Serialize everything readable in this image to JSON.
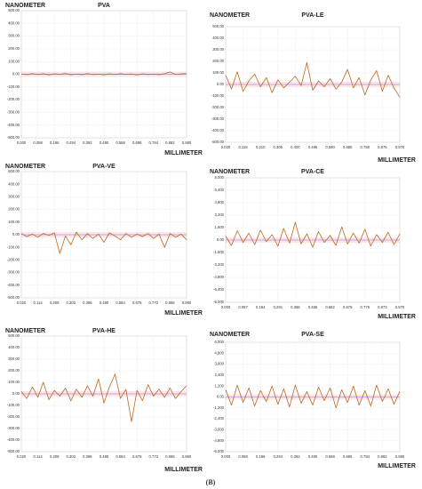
{
  "chart_data": [
    {
      "type": "line",
      "title": "PVA",
      "y_label": "NANOMETER",
      "x_label": "MILLIMETER",
      "color": "#c0661f",
      "grid": true,
      "x": [
        0.0,
        0.033,
        0.065,
        0.098,
        0.131,
        0.163,
        0.196,
        0.229,
        0.261,
        0.294,
        0.327,
        0.359,
        0.392,
        0.425,
        0.457,
        0.49,
        0.523,
        0.555,
        0.588,
        0.621,
        0.653,
        0.686,
        0.719,
        0.751,
        0.784,
        0.817,
        0.849,
        0.882,
        0.915,
        0.947,
        0.98
      ],
      "values": [
        2,
        -3,
        5,
        -2,
        4,
        -5,
        3,
        -1,
        6,
        -4,
        2,
        -3,
        5,
        -2,
        1,
        -4,
        3,
        -2,
        4,
        -1,
        2,
        -5,
        3,
        -2,
        1,
        -3,
        4,
        18,
        -2,
        3,
        5
      ],
      "xlim": [
        0,
        0.98
      ],
      "ylim": [
        -500,
        500
      ],
      "xticks": [
        {
          "value": 0,
          "label": "0.000"
        },
        {
          "value": 0.098,
          "label": "0.098"
        },
        {
          "value": 0.196,
          "label": "0.196"
        },
        {
          "value": 0.294,
          "label": "0.294"
        },
        {
          "value": 0.392,
          "label": "0.392"
        },
        {
          "value": 0.49,
          "label": "0.490"
        },
        {
          "value": 0.588,
          "label": "0.588"
        },
        {
          "value": 0.686,
          "label": "0.686"
        },
        {
          "value": 0.784,
          "label": "0.784"
        },
        {
          "value": 0.882,
          "label": "0.882"
        },
        {
          "value": 0.98,
          "label": "0.980"
        }
      ],
      "yticks": [
        {
          "value": 500,
          "label": "500.00"
        },
        {
          "value": 400,
          "label": "400.00"
        },
        {
          "value": 300,
          "label": "300.00"
        },
        {
          "value": 200,
          "label": "200.00"
        },
        {
          "value": 100,
          "label": "100.00"
        },
        {
          "value": 0,
          "label": "0.00"
        },
        {
          "value": -100,
          "label": "-100.00"
        },
        {
          "value": -200,
          "label": "-200.00"
        },
        {
          "value": -300,
          "label": "-300.00"
        },
        {
          "value": -400,
          "label": "-400.00"
        },
        {
          "value": -500,
          "label": "-500.00"
        }
      ]
    },
    {
      "type": "line",
      "title": "PVA-LE",
      "y_label": "NANOMETER",
      "x_label": "MILLIMETER",
      "color": "#c0661f",
      "grid": true,
      "x": [
        0.02,
        0.052,
        0.083,
        0.115,
        0.147,
        0.178,
        0.21,
        0.242,
        0.273,
        0.305,
        0.337,
        0.368,
        0.4,
        0.432,
        0.463,
        0.495,
        0.527,
        0.558,
        0.59,
        0.622,
        0.653,
        0.685,
        0.717,
        0.748,
        0.78,
        0.812,
        0.843,
        0.875,
        0.907,
        0.938,
        0.97
      ],
      "values": [
        80,
        -40,
        110,
        -60,
        30,
        90,
        -20,
        60,
        -70,
        40,
        -30,
        20,
        70,
        -10,
        190,
        -50,
        30,
        -20,
        50,
        -40,
        20,
        130,
        -30,
        60,
        -90,
        40,
        120,
        -60,
        80,
        -30,
        -110
      ],
      "xlim": [
        0.02,
        0.97
      ],
      "ylim": [
        -500,
        500
      ],
      "xticks": [
        {
          "value": 0.02,
          "label": "0.020"
        },
        {
          "value": 0.115,
          "label": "0.115"
        },
        {
          "value": 0.21,
          "label": "0.210"
        },
        {
          "value": 0.305,
          "label": "0.305"
        },
        {
          "value": 0.4,
          "label": "0.400"
        },
        {
          "value": 0.495,
          "label": "0.495"
        },
        {
          "value": 0.59,
          "label": "0.590"
        },
        {
          "value": 0.685,
          "label": "0.685"
        },
        {
          "value": 0.78,
          "label": "0.780"
        },
        {
          "value": 0.875,
          "label": "0.875"
        },
        {
          "value": 0.97,
          "label": "0.970"
        }
      ],
      "yticks": [
        {
          "value": 500,
          "label": "500.00"
        },
        {
          "value": 400,
          "label": "400.00"
        },
        {
          "value": 300,
          "label": "300.00"
        },
        {
          "value": 200,
          "label": "200.00"
        },
        {
          "value": 100,
          "label": "100.00"
        },
        {
          "value": 0,
          "label": "0.00"
        },
        {
          "value": -100,
          "label": "-100.00"
        },
        {
          "value": -200,
          "label": "-200.00"
        },
        {
          "value": -300,
          "label": "-300.00"
        },
        {
          "value": -400,
          "label": "-400.00"
        },
        {
          "value": -500,
          "label": "-500.00"
        }
      ]
    },
    {
      "type": "line",
      "title": "PVA-VE",
      "y_label": "NANOMETER",
      "x_label": "MILLIMETER",
      "color": "#c0661f",
      "grid": true,
      "x": [
        0.02,
        0.051,
        0.083,
        0.114,
        0.145,
        0.177,
        0.208,
        0.239,
        0.271,
        0.302,
        0.333,
        0.365,
        0.396,
        0.427,
        0.459,
        0.49,
        0.521,
        0.553,
        0.584,
        0.615,
        0.647,
        0.678,
        0.709,
        0.741,
        0.772,
        0.803,
        0.835,
        0.866,
        0.897,
        0.929,
        0.96
      ],
      "values": [
        10,
        -15,
        5,
        -20,
        10,
        -5,
        15,
        -150,
        -10,
        -80,
        20,
        -40,
        10,
        -30,
        5,
        -60,
        15,
        -10,
        -40,
        10,
        -20,
        5,
        -15,
        10,
        -30,
        5,
        -100,
        10,
        -20,
        5,
        -40
      ],
      "xlim": [
        0.02,
        0.96
      ],
      "ylim": [
        -500,
        500
      ],
      "xticks": [
        {
          "value": 0.02,
          "label": "0.020"
        },
        {
          "value": 0.114,
          "label": "0.114"
        },
        {
          "value": 0.208,
          "label": "0.208"
        },
        {
          "value": 0.302,
          "label": "0.302"
        },
        {
          "value": 0.396,
          "label": "0.396"
        },
        {
          "value": 0.49,
          "label": "0.490"
        },
        {
          "value": 0.584,
          "label": "0.584"
        },
        {
          "value": 0.678,
          "label": "0.678"
        },
        {
          "value": 0.772,
          "label": "0.772"
        },
        {
          "value": 0.866,
          "label": "0.866"
        },
        {
          "value": 0.96,
          "label": "0.960"
        }
      ],
      "yticks": [
        {
          "value": 500,
          "label": "500.00"
        },
        {
          "value": 400,
          "label": "400.00"
        },
        {
          "value": 300,
          "label": "300.00"
        },
        {
          "value": 200,
          "label": "200.00"
        },
        {
          "value": 100,
          "label": "100.00"
        },
        {
          "value": 0,
          "label": "0.00"
        },
        {
          "value": -100,
          "label": "-100.00"
        },
        {
          "value": -200,
          "label": "-200.00"
        },
        {
          "value": -300,
          "label": "-300.00"
        },
        {
          "value": -400,
          "label": "-400.00"
        },
        {
          "value": -500,
          "label": "-500.00"
        }
      ]
    },
    {
      "type": "line",
      "title": "PVA-CE",
      "y_label": "NANOMETER",
      "x_label": "MILLIMETER",
      "color": "#c0661f",
      "grid": true,
      "x": [
        0.0,
        0.032,
        0.065,
        0.097,
        0.129,
        0.162,
        0.194,
        0.226,
        0.259,
        0.291,
        0.323,
        0.356,
        0.388,
        0.42,
        0.453,
        0.485,
        0.517,
        0.55,
        0.582,
        0.614,
        0.647,
        0.679,
        0.711,
        0.744,
        0.776,
        0.808,
        0.841,
        0.873,
        0.905,
        0.938,
        0.97
      ],
      "values": [
        500,
        -700,
        1200,
        -300,
        900,
        -600,
        1300,
        -200,
        700,
        -800,
        1500,
        -400,
        2300,
        -500,
        800,
        -900,
        1100,
        -300,
        600,
        -700,
        1700,
        -500,
        900,
        -400,
        1400,
        -800,
        700,
        -300,
        1000,
        -600,
        800
      ],
      "xlim": [
        0,
        0.97
      ],
      "ylim": [
        -8000,
        8000
      ],
      "xticks": [
        {
          "value": 0,
          "label": "0.000"
        },
        {
          "value": 0.097,
          "label": "0.097"
        },
        {
          "value": 0.194,
          "label": "0.194"
        },
        {
          "value": 0.291,
          "label": "0.291"
        },
        {
          "value": 0.388,
          "label": "0.388"
        },
        {
          "value": 0.485,
          "label": "0.485"
        },
        {
          "value": 0.582,
          "label": "0.582"
        },
        {
          "value": 0.679,
          "label": "0.679"
        },
        {
          "value": 0.776,
          "label": "0.776"
        },
        {
          "value": 0.873,
          "label": "0.873"
        },
        {
          "value": 0.97,
          "label": "0.970"
        }
      ],
      "yticks": [
        {
          "value": 8000,
          "label": "8,000"
        },
        {
          "value": 6400,
          "label": "6,400"
        },
        {
          "value": 4800,
          "label": "4,800"
        },
        {
          "value": 3200,
          "label": "3,200"
        },
        {
          "value": 1600,
          "label": "1,600"
        },
        {
          "value": 0,
          "label": "0.00"
        },
        {
          "value": -1600,
          "label": "-1,600"
        },
        {
          "value": -3200,
          "label": "-3,200"
        },
        {
          "value": -4800,
          "label": "-4,800"
        },
        {
          "value": -6400,
          "label": "-6,400"
        },
        {
          "value": -8000,
          "label": "-8,000"
        }
      ]
    },
    {
      "type": "line",
      "title": "PVA-HE",
      "y_label": "NANOMETER",
      "x_label": "MILLIMETER",
      "color": "#c0661f",
      "grid": true,
      "x": [
        0.02,
        0.051,
        0.083,
        0.114,
        0.145,
        0.177,
        0.208,
        0.239,
        0.271,
        0.302,
        0.333,
        0.365,
        0.396,
        0.427,
        0.459,
        0.49,
        0.521,
        0.553,
        0.584,
        0.615,
        0.647,
        0.678,
        0.709,
        0.741,
        0.772,
        0.803,
        0.835,
        0.866,
        0.897,
        0.929,
        0.96
      ],
      "values": [
        20,
        -40,
        60,
        -30,
        100,
        -50,
        30,
        -20,
        50,
        -60,
        40,
        -30,
        70,
        -20,
        130,
        -80,
        60,
        170,
        -40,
        40,
        -240,
        30,
        -60,
        80,
        -20,
        40,
        -30,
        50,
        -40,
        20,
        70
      ],
      "xlim": [
        0.02,
        0.96
      ],
      "ylim": [
        -500,
        500
      ],
      "xticks": [
        {
          "value": 0.02,
          "label": "0.020"
        },
        {
          "value": 0.114,
          "label": "0.114"
        },
        {
          "value": 0.208,
          "label": "0.208"
        },
        {
          "value": 0.302,
          "label": "0.302"
        },
        {
          "value": 0.396,
          "label": "0.396"
        },
        {
          "value": 0.49,
          "label": "0.490"
        },
        {
          "value": 0.584,
          "label": "0.584"
        },
        {
          "value": 0.678,
          "label": "0.678"
        },
        {
          "value": 0.772,
          "label": "0.772"
        },
        {
          "value": 0.866,
          "label": "0.866"
        },
        {
          "value": 0.96,
          "label": "0.960"
        }
      ],
      "yticks": [
        {
          "value": 500,
          "label": "500.00"
        },
        {
          "value": 400,
          "label": "400.00"
        },
        {
          "value": 300,
          "label": "300.00"
        },
        {
          "value": 200,
          "label": "200.00"
        },
        {
          "value": 100,
          "label": "100.00"
        },
        {
          "value": 0,
          "label": "0.00"
        },
        {
          "value": -100,
          "label": "-100.00"
        },
        {
          "value": -200,
          "label": "-200.00"
        },
        {
          "value": -300,
          "label": "-300.00"
        },
        {
          "value": -400,
          "label": "-400.00"
        },
        {
          "value": -500,
          "label": "-500.00"
        }
      ]
    },
    {
      "type": "line",
      "title": "PVA-SE",
      "y_label": "NANOMETER",
      "x_label": "MILLIMETER",
      "color": "#c0661f",
      "grid": true,
      "x": [
        0.0,
        0.033,
        0.065,
        0.098,
        0.131,
        0.163,
        0.196,
        0.229,
        0.261,
        0.294,
        0.327,
        0.359,
        0.392,
        0.425,
        0.457,
        0.49,
        0.523,
        0.555,
        0.588,
        0.621,
        0.653,
        0.686,
        0.719,
        0.751,
        0.784,
        0.817,
        0.849,
        0.882,
        0.915,
        0.947,
        0.98
      ],
      "values": [
        800,
        -900,
        1300,
        -600,
        1000,
        -1000,
        700,
        -500,
        1200,
        -800,
        900,
        -1100,
        1300,
        -700,
        600,
        -900,
        1100,
        -400,
        1000,
        -1200,
        800,
        -600,
        1200,
        -900,
        700,
        -1000,
        1300,
        -500,
        900,
        -800,
        600
      ],
      "xlim": [
        0,
        0.98
      ],
      "ylim": [
        -6000,
        6000
      ],
      "xticks": [
        {
          "value": 0,
          "label": "0.000"
        },
        {
          "value": 0.098,
          "label": "0.098"
        },
        {
          "value": 0.196,
          "label": "0.196"
        },
        {
          "value": 0.294,
          "label": "0.294"
        },
        {
          "value": 0.392,
          "label": "0.392"
        },
        {
          "value": 0.49,
          "label": "0.490"
        },
        {
          "value": 0.588,
          "label": "0.588"
        },
        {
          "value": 0.686,
          "label": "0.686"
        },
        {
          "value": 0.784,
          "label": "0.784"
        },
        {
          "value": 0.882,
          "label": "0.882"
        },
        {
          "value": 0.98,
          "label": "0.980"
        }
      ],
      "yticks": [
        {
          "value": 6000,
          "label": "6,000"
        },
        {
          "value": 4800,
          "label": "4,800"
        },
        {
          "value": 3600,
          "label": "3,600"
        },
        {
          "value": 2400,
          "label": "2,400"
        },
        {
          "value": 1200,
          "label": "1,200"
        },
        {
          "value": 0,
          "label": "0.00"
        },
        {
          "value": -1200,
          "label": "-1,200"
        },
        {
          "value": -2400,
          "label": "-2,400"
        },
        {
          "value": -3600,
          "label": "-3,600"
        },
        {
          "value": -4800,
          "label": "-4,800"
        },
        {
          "value": -6000,
          "label": "-6,000"
        }
      ]
    }
  ],
  "caption": "(B)"
}
